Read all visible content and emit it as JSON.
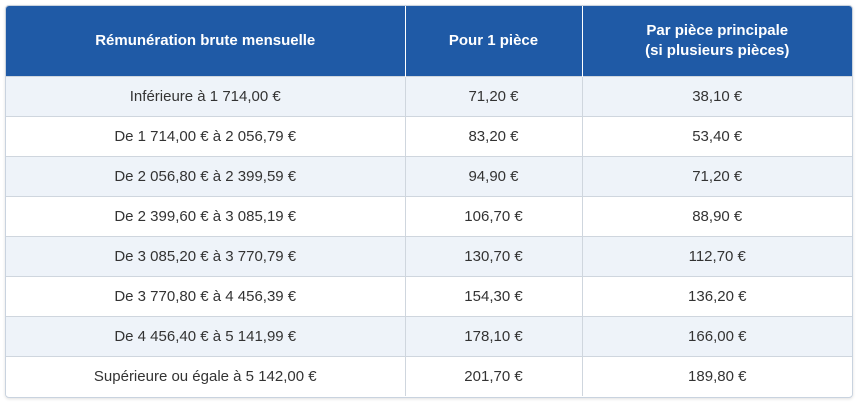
{
  "table": {
    "headers": [
      [
        "Rémunération brute mensuelle"
      ],
      [
        "Pour 1 pièce"
      ],
      [
        "Par pièce principale",
        "(si plusieurs pièces)"
      ]
    ],
    "rows": [
      [
        "Inférieure à 1 714,00 €",
        "71,20 €",
        "38,10 €"
      ],
      [
        "De 1 714,00 € à 2 056,79 €",
        "83,20 €",
        "53,40 €"
      ],
      [
        "De 2 056,80 € à 2 399,59 €",
        "94,90 €",
        "71,20 €"
      ],
      [
        "De 2 399,60 € à 3 085,19 €",
        "106,70 €",
        "88,90 €"
      ],
      [
        "De 3 085,20 € à 3 770,79 €",
        "130,70 €",
        "112,70 €"
      ],
      [
        "De 3 770,80 € à 4 456,39 €",
        "154,30 €",
        "136,20 €"
      ],
      [
        "De 4 456,40 € à 5 141,99 €",
        "178,10 €",
        "166,00 €"
      ],
      [
        "Supérieure ou égale à 5 142,00 €",
        "201,70 €",
        "189,80 €"
      ]
    ]
  },
  "colors": {
    "header_bg": "#1f5aa6",
    "header_text": "#ffffff",
    "row_alt_bg": "#eef3f9",
    "row_bg": "#ffffff",
    "cell_text": "#333333",
    "border": "#cfd6de"
  }
}
